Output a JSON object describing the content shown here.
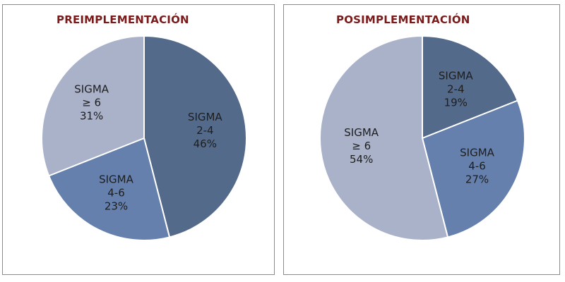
{
  "chart_data": [
    {
      "type": "pie",
      "title": "PREIMPLEMENTACIÓN",
      "slices": [
        {
          "label_lines": [
            "SIGMA",
            "2-4",
            "46%"
          ],
          "value": 46,
          "color": "#536a8a"
        },
        {
          "label_lines": [
            "SIGMA",
            "4-6",
            "23%"
          ],
          "value": 23,
          "color": "#6580ac"
        },
        {
          "label_lines": [
            "SIGMA",
            "≥ 6",
            "31%"
          ],
          "value": 31,
          "color": "#a9b2c9"
        }
      ]
    },
    {
      "type": "pie",
      "title": "POSIMPLEMENTACIÓN",
      "slices": [
        {
          "label_lines": [
            "SIGMA",
            "2-4",
            "19%"
          ],
          "value": 19,
          "color": "#536a8a"
        },
        {
          "label_lines": [
            "SIGMA",
            "4-6",
            "27%"
          ],
          "value": 27,
          "color": "#6580ac"
        },
        {
          "label_lines": [
            "SIGMA",
            "≥ 6",
            "54%"
          ],
          "value": 54,
          "color": "#a9b2c9"
        }
      ]
    }
  ]
}
